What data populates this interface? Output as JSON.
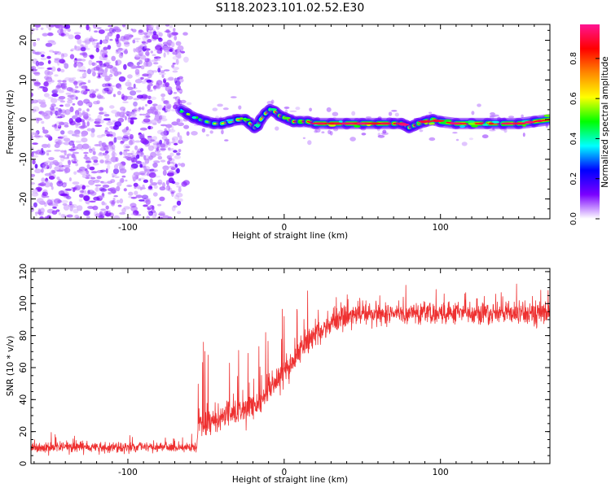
{
  "figure": {
    "title": "S118.2023.101.02.52.E30"
  },
  "chart_data": [
    {
      "type": "heatmap",
      "panel": "spectrogram",
      "xlabel": "Height of straight line (km)",
      "ylabel": "Frequency (Hz)",
      "xlim": [
        -162,
        170
      ],
      "ylim": [
        -25,
        24
      ],
      "xticks": [
        -100,
        0,
        100
      ],
      "yticks": [
        -20,
        -10,
        0,
        10,
        20
      ],
      "colorbar": {
        "label": "Normalized spectral amplitude",
        "range": [
          0,
          0.97
        ],
        "ticks": [
          0.0,
          0.2,
          0.4,
          0.6,
          0.8
        ],
        "tick_labels": [
          "0.0",
          "0.2",
          "0.4",
          "0.6",
          "0.8"
        ],
        "colormap": [
          "#ffffff",
          "#7a00ff",
          "#0000ff",
          "#00ffff",
          "#00ff00",
          "#ffff00",
          "#ff8800",
          "#ff0000",
          "#ff1493"
        ]
      },
      "noise_region": {
        "x": [
          -162,
          -66
        ],
        "y": [
          -25,
          24
        ],
        "level": 0.1
      },
      "ridge": {
        "x": [
          -66,
          -62,
          -58,
          -54,
          -50,
          -45,
          -40,
          -35,
          -30,
          -25,
          -22,
          -19,
          -17,
          -15,
          -12,
          -9,
          -6,
          -3,
          0,
          3,
          6,
          10,
          15,
          20,
          30,
          40,
          50,
          60,
          70,
          75,
          78,
          80,
          83,
          86,
          90,
          95,
          100,
          110,
          120,
          130,
          140,
          150,
          160,
          170
        ],
        "y": [
          2.5,
          1.5,
          0.5,
          0,
          -0.5,
          -1,
          -1,
          -0.5,
          0,
          0,
          -1,
          -2,
          -1.5,
          0,
          1.5,
          2.5,
          2,
          1,
          0.5,
          0,
          -0.5,
          -0.5,
          -0.5,
          -1,
          -1,
          -1,
          -1,
          -1,
          -1,
          -1,
          -1.5,
          -2,
          -1.5,
          -1,
          -0.5,
          0,
          -0.5,
          -1,
          -1,
          -1,
          -1,
          -1,
          -0.5,
          0
        ],
        "amplitude": [
          0.35,
          0.4,
          0.45,
          0.5,
          0.55,
          0.6,
          0.65,
          0.7,
          0.75,
          0.8,
          0.8,
          0.75,
          0.7,
          0.7,
          0.75,
          0.8,
          0.85,
          0.85,
          0.85,
          0.88,
          0.9,
          0.92,
          0.93,
          0.93,
          0.95,
          0.95,
          0.95,
          0.95,
          0.95,
          0.93,
          0.85,
          0.75,
          0.85,
          0.93,
          0.95,
          0.93,
          0.93,
          0.95,
          0.95,
          0.95,
          0.95,
          0.95,
          0.93,
          0.92
        ]
      }
    },
    {
      "type": "line",
      "panel": "snr",
      "xlabel": "Height of straight line (km)",
      "ylabel": "SNR (10 * v/v)",
      "xlim": [
        -162,
        170
      ],
      "ylim": [
        0,
        122
      ],
      "xticks": [
        -100,
        0,
        100
      ],
      "yticks": [
        0,
        20,
        40,
        60,
        80,
        100,
        120
      ],
      "color": "#ee3030",
      "series": [
        {
          "x": [
            -162,
            -120,
            -80,
            -56,
            -55,
            -45,
            -35,
            -25,
            -15,
            -10,
            -5,
            0,
            5,
            10,
            15,
            20,
            30,
            40,
            60,
            80,
            100,
            120,
            140,
            160,
            170
          ],
          "mean": [
            10,
            10,
            10,
            10,
            24,
            27,
            30,
            34,
            40,
            46,
            52,
            58,
            64,
            70,
            76,
            82,
            88,
            92,
            94,
            94,
            94,
            94,
            94,
            94,
            94
          ],
          "noise": [
            5,
            5,
            5,
            5,
            12,
            12,
            13,
            13,
            13,
            13,
            14,
            14,
            13,
            13,
            12,
            12,
            11,
            11,
            10,
            10,
            10,
            10,
            10,
            10,
            10
          ],
          "samples_per_km": 6
        }
      ]
    }
  ]
}
